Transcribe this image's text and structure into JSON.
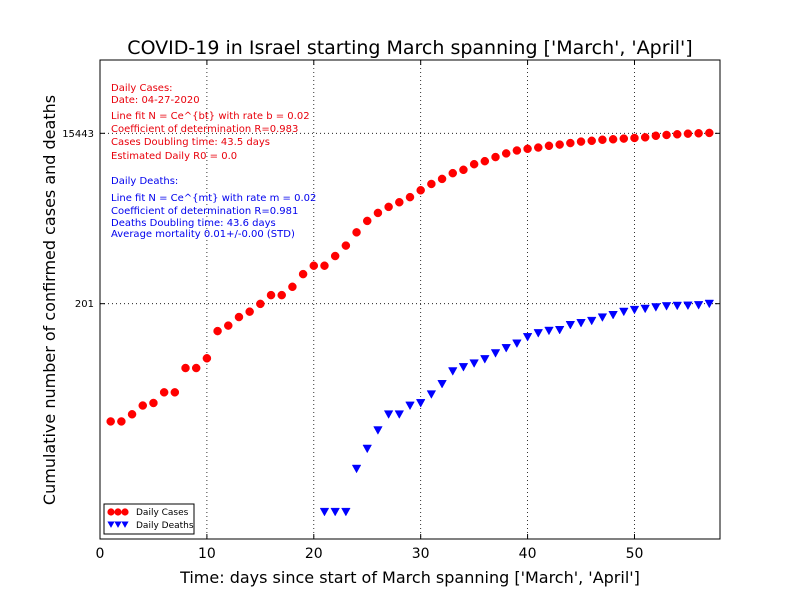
{
  "colors": {
    "cases": "#ff0000",
    "deaths": "#0000ff",
    "cases_text": "#e8000b",
    "deaths_text": "#0000ee"
  },
  "chart_data": {
    "type": "scatter",
    "title": "COVID-19 in Israel starting March spanning ['March', 'April']",
    "xlabel": "Time: days since start of March spanning ['March', 'April']",
    "ylabel": "Cumulative number of confirmed cases and deaths",
    "y_scale": "log",
    "xlim": [
      0,
      58
    ],
    "ylim": [
      0.5,
      100000
    ],
    "x_ticks": [
      0,
      10,
      20,
      30,
      40,
      50
    ],
    "y_ticks": [
      {
        "value": 201,
        "label": "201"
      },
      {
        "value": 15443,
        "label": "15443"
      }
    ],
    "grid": true,
    "legend_position": "lower-left",
    "series": [
      {
        "name": "Daily Cases",
        "marker": "circle",
        "x": [
          1,
          2,
          3,
          4,
          5,
          6,
          7,
          8,
          9,
          10,
          11,
          12,
          13,
          14,
          15,
          16,
          17,
          18,
          19,
          20,
          21,
          22,
          23,
          24,
          25,
          26,
          27,
          28,
          29,
          30,
          31,
          32,
          33,
          34,
          35,
          36,
          37,
          38,
          39,
          40,
          41,
          42,
          43,
          44,
          45,
          46,
          47,
          48,
          49,
          50,
          51,
          52,
          53,
          54,
          55,
          56,
          57
        ],
        "y": [
          10,
          10,
          12,
          15,
          16,
          21,
          21,
          39,
          39,
          50,
          100,
          115,
          143,
          164,
          200,
          250,
          250,
          309,
          427,
          529,
          529,
          677,
          883,
          1238,
          1656,
          2030,
          2369,
          2666,
          3035,
          3619,
          4247,
          4831,
          5591,
          6092,
          7030,
          7589,
          8430,
          9248,
          9968,
          10408,
          10743,
          11235,
          11586,
          12046,
          12501,
          12758,
          13107,
          13265,
          13491,
          13713,
          13942,
          14498,
          14803,
          15058,
          15298,
          15443,
          15589
        ]
      },
      {
        "name": "Daily Deaths",
        "marker": "triangle-down",
        "x": [
          21,
          22,
          23,
          24,
          25,
          26,
          27,
          28,
          29,
          30,
          31,
          32,
          33,
          34,
          35,
          36,
          37,
          38,
          39,
          40,
          41,
          42,
          43,
          44,
          45,
          46,
          47,
          48,
          49,
          50,
          51,
          52,
          53,
          54,
          55,
          56,
          57
        ],
        "y": [
          1,
          1,
          1,
          3,
          5,
          8,
          12,
          12,
          15,
          16,
          20,
          26,
          36,
          40,
          44,
          49,
          57,
          65,
          73,
          86,
          95,
          101,
          103,
          117,
          123,
          130,
          142,
          151,
          164,
          172,
          177,
          184,
          189,
          191,
          192,
          194,
          201
        ]
      }
    ],
    "annotations": {
      "cases": {
        "heading": "Daily Cases:",
        "date": "Date: 04-27-2020",
        "fit": "Line fit N = Ce^{bt} with rate b = 0.02",
        "r2": "Coefficient of determination R=0.983",
        "doubling": "Cases Doubling time: 43.5 days",
        "r0": "Estimated Daily R0 = 0.0"
      },
      "deaths": {
        "heading": "Daily Deaths:",
        "fit": "Line fit N = Ce^{mt} with rate m = 0.02",
        "r2": "Coefficient of determination R=0.981",
        "doubling": "Deaths Doubling time: 43.6 days",
        "mortality": "Average mortality 0.01+/-0.00 (STD)"
      }
    }
  }
}
